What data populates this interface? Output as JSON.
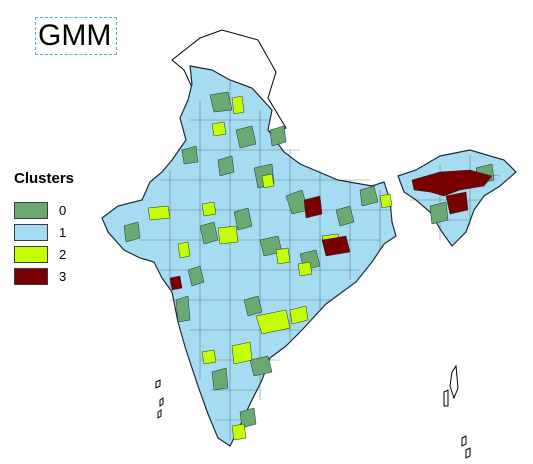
{
  "map": {
    "title": "GMM",
    "legend": {
      "title": "Clusters",
      "items": [
        {
          "label": "0",
          "color": "#6aaa72"
        },
        {
          "label": "1",
          "color": "#a6dcf1"
        },
        {
          "label": "2",
          "color": "#c6ff00"
        },
        {
          "label": "3",
          "color": "#7a0000"
        }
      ]
    }
  }
}
